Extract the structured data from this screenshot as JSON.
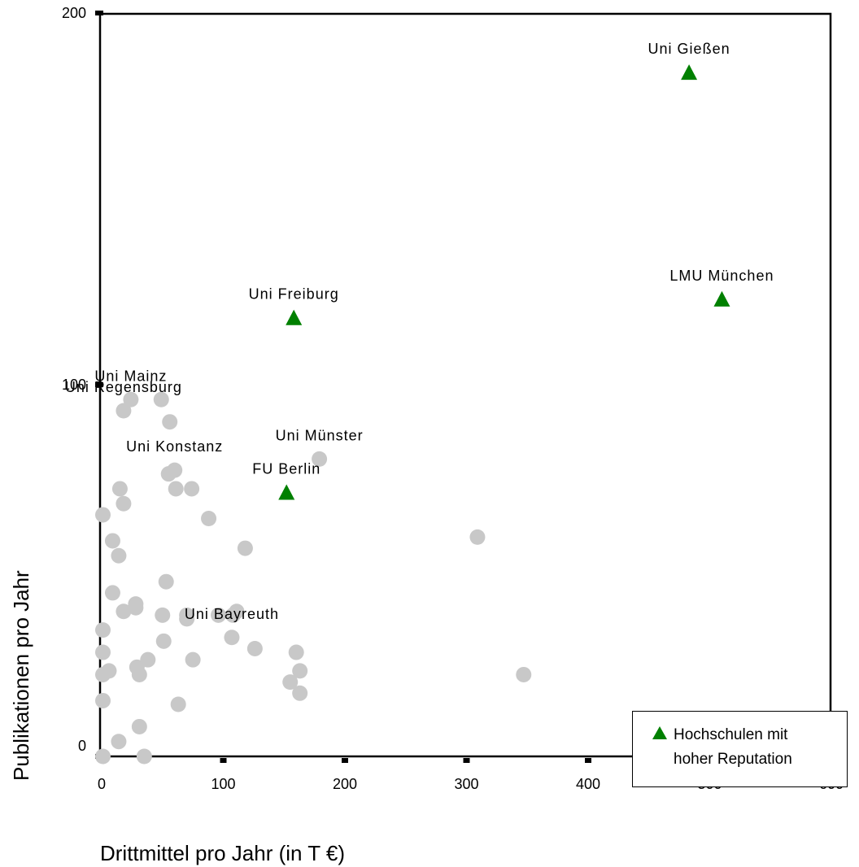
{
  "chart_data": {
    "type": "scatter",
    "xlabel": "Drittmittel pro Jahr (in T €)",
    "ylabel": "Publikationen pro Jahr",
    "xlim": [
      0,
      600
    ],
    "ylim": [
      0,
      200
    ],
    "x_ticks": [
      "0",
      "100",
      "200",
      "300",
      "400",
      "500",
      "600"
    ],
    "y_ticks": [
      "0",
      "100",
      "200"
    ],
    "legend": {
      "label_line1": "Hochschulen mit",
      "label_line2": "hoher Reputation",
      "placement": "bottom-right"
    },
    "colors": {
      "high_reputation": "#008000",
      "other": "#c8c8c8"
    },
    "series": [
      {
        "name": "Hochschulen mit hoher Reputation",
        "marker": "triangle",
        "points": [
          {
            "x": 483,
            "y": 184,
            "label": "Uni Gießen"
          },
          {
            "x": 510,
            "y": 123,
            "label": "LMU München"
          },
          {
            "x": 158,
            "y": 118,
            "label": "Uni Freiburg"
          },
          {
            "x": 152,
            "y": 71,
            "label": "FU Berlin"
          }
        ]
      },
      {
        "marker": "circle",
        "points": [
          {
            "x": 24,
            "y": 96,
            "label": "Uni Mainz"
          },
          {
            "x": 18,
            "y": 93,
            "label": "Uni Regensburg"
          },
          {
            "x": 49,
            "y": 96
          },
          {
            "x": 56,
            "y": 90
          },
          {
            "x": 179,
            "y": 80,
            "label": "Uni Münster"
          },
          {
            "x": 60,
            "y": 77,
            "label": "Uni Konstanz"
          },
          {
            "x": 55,
            "y": 76
          },
          {
            "x": 15,
            "y": 72
          },
          {
            "x": 61,
            "y": 72
          },
          {
            "x": 74,
            "y": 72
          },
          {
            "x": 18,
            "y": 68
          },
          {
            "x": 1,
            "y": 65
          },
          {
            "x": 88,
            "y": 64
          },
          {
            "x": 9,
            "y": 58
          },
          {
            "x": 118,
            "y": 56
          },
          {
            "x": 309,
            "y": 59
          },
          {
            "x": 14,
            "y": 54
          },
          {
            "x": 53,
            "y": 47
          },
          {
            "x": 9,
            "y": 44
          },
          {
            "x": 28,
            "y": 41
          },
          {
            "x": 28,
            "y": 40
          },
          {
            "x": 18,
            "y": 39
          },
          {
            "x": 50,
            "y": 38
          },
          {
            "x": 70,
            "y": 38
          },
          {
            "x": 70,
            "y": 37
          },
          {
            "x": 96,
            "y": 38
          },
          {
            "x": 108,
            "y": 38
          },
          {
            "x": 111,
            "y": 39
          },
          {
            "x": 1,
            "y": 34
          },
          {
            "x": 107,
            "y": 32,
            "label": "Uni Bayreuth"
          },
          {
            "x": 51,
            "y": 31
          },
          {
            "x": 126,
            "y": 29
          },
          {
            "x": 1,
            "y": 28
          },
          {
            "x": 38,
            "y": 26
          },
          {
            "x": 75,
            "y": 26
          },
          {
            "x": 160,
            "y": 28
          },
          {
            "x": 29,
            "y": 24
          },
          {
            "x": 163,
            "y": 23
          },
          {
            "x": 6,
            "y": 23
          },
          {
            "x": 31,
            "y": 22
          },
          {
            "x": 1,
            "y": 22
          },
          {
            "x": 347,
            "y": 22
          },
          {
            "x": 155,
            "y": 20
          },
          {
            "x": 163,
            "y": 17
          },
          {
            "x": 1,
            "y": 15
          },
          {
            "x": 63,
            "y": 14
          },
          {
            "x": 31,
            "y": 8
          },
          {
            "x": 14,
            "y": 4
          },
          {
            "x": 1,
            "y": 0
          },
          {
            "x": 35,
            "y": 0
          }
        ]
      }
    ]
  }
}
